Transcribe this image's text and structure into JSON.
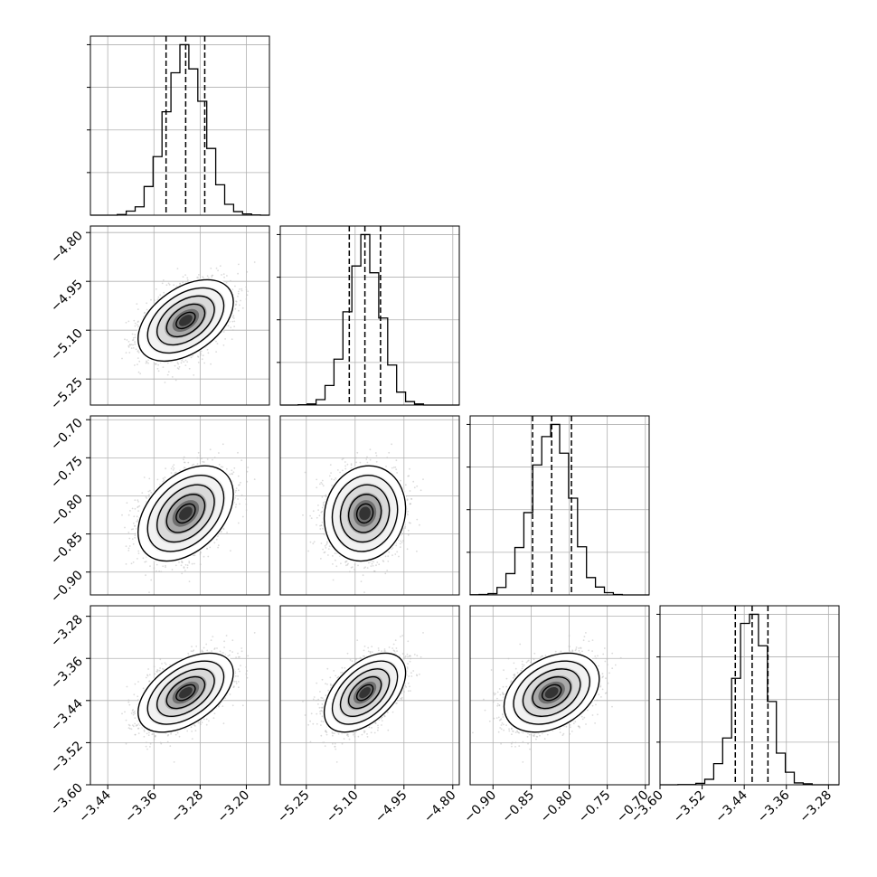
{
  "chart_data": {
    "type": "corner",
    "n_params": 4,
    "params": [
      {
        "range": [
          -3.47,
          -3.16
        ],
        "ticks": [
          -3.44,
          -3.36,
          -3.28,
          -3.2
        ],
        "tick_labels": [
          "−3.44",
          "−3.36",
          "−3.28",
          "−3.20"
        ],
        "mean": -3.305,
        "sd": 0.033,
        "quantiles": [
          -3.339,
          -3.305,
          -3.272
        ]
      },
      {
        "range": [
          -5.33,
          -4.78
        ],
        "ticks": [
          -5.25,
          -5.1,
          -4.95,
          -4.8
        ],
        "tick_labels": [
          "−5.25",
          "−5.10",
          "−4.95",
          "−4.80"
        ],
        "mean": -5.07,
        "sd": 0.05,
        "quantiles": [
          -5.118,
          -5.07,
          -5.022
        ]
      },
      {
        "range": [
          -0.93,
          -0.695
        ],
        "ticks": [
          -0.9,
          -0.85,
          -0.8,
          -0.75,
          -0.7
        ],
        "tick_labels": [
          "−0.90",
          "−0.85",
          "−0.80",
          "−0.75",
          "−0.70"
        ],
        "mean": -0.823,
        "sd": 0.025,
        "quantiles": [
          -0.848,
          -0.823,
          -0.797
        ]
      },
      {
        "range": [
          -3.6,
          -3.26
        ],
        "ticks": [
          -3.6,
          -3.52,
          -3.44,
          -3.36,
          -3.28
        ],
        "tick_labels": [
          "−3.60",
          "−3.52",
          "−3.44",
          "−3.36",
          "−3.28"
        ],
        "mean": -3.425,
        "sd": 0.03,
        "quantiles": [
          -3.457,
          -3.425,
          -3.395
        ]
      }
    ],
    "correlations": [
      [
        1,
        0.45,
        0.4,
        0.5
      ],
      [
        0.45,
        1,
        0.1,
        0.5
      ],
      [
        0.4,
        0.1,
        1,
        0.35
      ],
      [
        0.5,
        0.5,
        0.35,
        1
      ]
    ],
    "hist_bins": 20,
    "grid": true,
    "colors": {
      "line": "#000000",
      "samples": "#bdbdbd",
      "grid": "#b0b0b0"
    }
  }
}
